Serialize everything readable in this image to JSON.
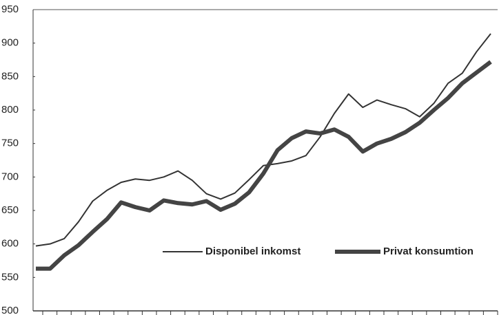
{
  "chart_data": {
    "type": "line",
    "categories": [
      null,
      null,
      null,
      null,
      null,
      null,
      null,
      null,
      null,
      null,
      null,
      null,
      null,
      null,
      null,
      null,
      null,
      null,
      null,
      null,
      null,
      null,
      null,
      null,
      null,
      null,
      null,
      null,
      null,
      null,
      null,
      null,
      null
    ],
    "series": [
      {
        "name": "Disponibel inkomst",
        "color": "#333333",
        "width": 2,
        "values": [
          597,
          600,
          608,
          633,
          664,
          680,
          692,
          697,
          695,
          700,
          709,
          695,
          675,
          667,
          676,
          696,
          717,
          720,
          724,
          732,
          760,
          795,
          824,
          804,
          815,
          808,
          802,
          790,
          810,
          840,
          855,
          887,
          914
        ]
      },
      {
        "name": "Privat konsumtion",
        "color": "#444444",
        "width": 6,
        "values": [
          563,
          563,
          583,
          598,
          618,
          637,
          662,
          655,
          650,
          665,
          661,
          659,
          664,
          651,
          660,
          677,
          705,
          740,
          758,
          768,
          765,
          771,
          760,
          738,
          750,
          757,
          767,
          781,
          800,
          818,
          840,
          856,
          872
        ]
      }
    ],
    "ylim": [
      500,
      950
    ],
    "yticks": [
      500,
      550,
      600,
      650,
      700,
      750,
      800,
      850,
      900,
      950
    ],
    "legend": "lower-right"
  }
}
